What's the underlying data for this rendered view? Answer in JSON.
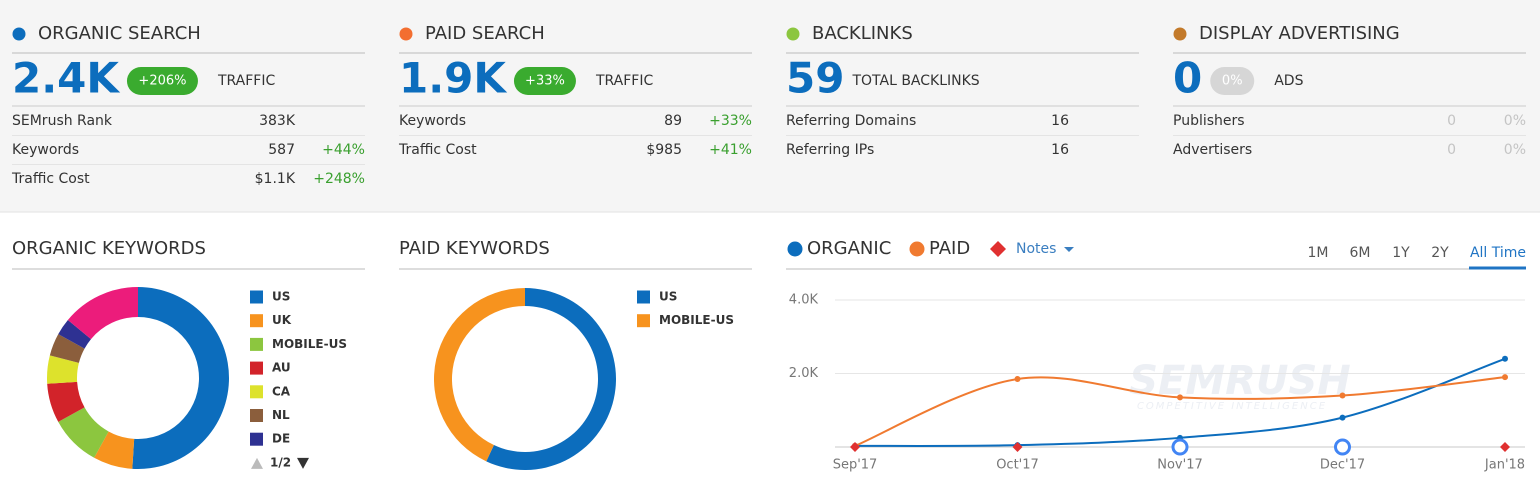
{
  "summary": [
    {
      "title": "ORGANIC SEARCH",
      "dot_color": "#0c6dbd",
      "value": "2.4K",
      "badge": "+206%",
      "badge_color": "#3aab2f",
      "label": "TRAFFIC",
      "change_color": "#3aa02f",
      "rows": [
        {
          "name": "SEMrush Rank",
          "value": "383K"
        },
        {
          "name": "Keywords",
          "value": "587",
          "change": "+44%"
        },
        {
          "name": "Traffic Cost",
          "value": "$1.1K",
          "change": "+248%"
        }
      ]
    },
    {
      "title": "PAID SEARCH",
      "dot_color": "#f36e30",
      "value": "1.9K",
      "badge": "+33%",
      "badge_color": "#3aab2f",
      "label": "TRAFFIC",
      "change_color": "#3aa02f",
      "rows": [
        {
          "name": "Keywords",
          "value": "89",
          "change": "+33%"
        },
        {
          "name": "Traffic Cost",
          "value": "$985",
          "change": "+41%"
        }
      ]
    },
    {
      "title": "BACKLINKS",
      "dot_color": "#8cc63f",
      "value": "59",
      "label": "TOTAL BACKLINKS",
      "change_color": "#3aa02f",
      "rows": [
        {
          "name": "Referring Domains",
          "value": "16"
        },
        {
          "name": "Referring IPs",
          "value": "16"
        }
      ]
    },
    {
      "title": "DISPLAY ADVERTISING",
      "dot_color": "#c37a2a",
      "value": "0",
      "badge": "0%",
      "badge_color": "#d6d6d6",
      "label": "ADS",
      "change_color": "#c4c4c4",
      "muted": true,
      "rows": [
        {
          "name": "Publishers",
          "value": "0",
          "change": "0%"
        },
        {
          "name": "Advertisers",
          "value": "0",
          "change": "0%"
        }
      ]
    }
  ],
  "chart_data": [
    {
      "type": "donut",
      "title": "ORGANIC KEYWORDS",
      "unit": "%",
      "categories": [
        "US",
        "UK",
        "MOBILE-US",
        "AU",
        "CA",
        "NL",
        "DE",
        null
      ],
      "values": [
        51,
        7,
        9,
        7,
        5,
        4,
        3,
        14
      ],
      "colors": [
        "#0c6dbd",
        "#f7931e",
        "#8cc63f",
        "#d2232a",
        "#dde22c",
        "#8b5e3c",
        "#2e3192",
        "#ec1c7b"
      ],
      "pager": "1/2"
    },
    {
      "type": "donut",
      "title": "PAID KEYWORDS",
      "unit": "%",
      "categories": [
        "US",
        "MOBILE-US"
      ],
      "values": [
        57,
        43
      ],
      "colors": [
        "#0c6dbd",
        "#f7931e"
      ]
    },
    {
      "type": "line",
      "notes_label": "Notes",
      "watermark": "SEMRUSH",
      "watermark_sub": "COMPETITIVE INTELLIGENCE",
      "time_ranges": [
        "1M",
        "6M",
        "1Y",
        "2Y",
        "All Time"
      ],
      "active_range": 4,
      "categories": [
        "Sep'17",
        "Oct'17",
        "Nov'17",
        "Dec'17",
        "Jan'18"
      ],
      "ylim": [
        0,
        4000
      ],
      "yticks": [
        {
          "value": 2000,
          "label": "2.0K"
        },
        {
          "value": 4000,
          "label": "4.0K"
        }
      ],
      "grid": true,
      "series": [
        {
          "name": "ORGANIC",
          "color": "#0c6dbd",
          "values": [
            30,
            50,
            250,
            800,
            2400
          ]
        },
        {
          "name": "PAID",
          "color": "#f07a30",
          "values": [
            30,
            1850,
            1350,
            1400,
            1900
          ]
        }
      ]
    }
  ]
}
